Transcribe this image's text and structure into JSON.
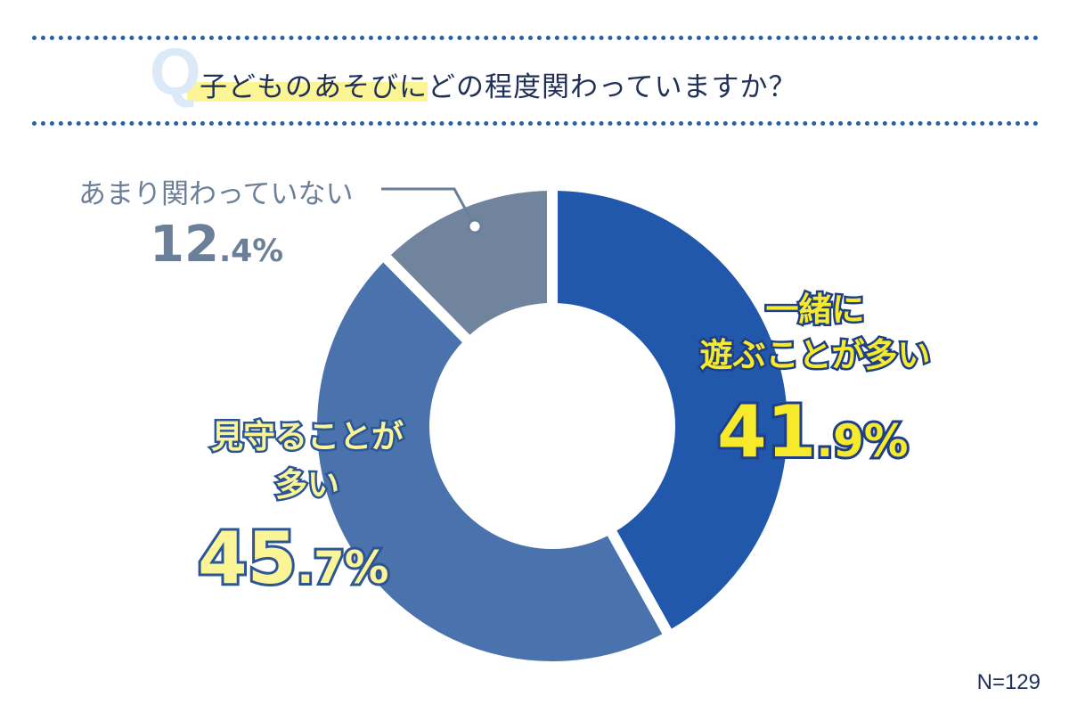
{
  "question": {
    "mark": "Q",
    "text": "子どものあそびにどの程度関わっていますか？"
  },
  "colors": {
    "dots": "#2a5fa8",
    "together": "#2158ab",
    "watch": "#4a73ad",
    "rarely": "#70849d",
    "highlight_yellow": "#f7ea2a"
  },
  "chart_data": {
    "type": "pie",
    "style": "donut",
    "start_angle_deg": 0,
    "direction": "clockwise",
    "series": [
      {
        "label_lines": [
          "一緒に",
          "遊ぶことが多い"
        ],
        "value": 41.9,
        "pct_main": "41",
        "pct_small": ".9",
        "pct_sign": "%",
        "color": "#2158ab"
      },
      {
        "label_lines": [
          "見守ることが",
          "多い"
        ],
        "value": 45.7,
        "pct_main": "45",
        "pct_small": ".7",
        "pct_sign": "%",
        "color": "#4a73ad"
      },
      {
        "label_lines": [
          "あまり関わっていない"
        ],
        "value": 12.4,
        "pct_main": "12",
        "pct_small": ".4",
        "pct_sign": "%",
        "color": "#70849d"
      }
    ],
    "sample_size": "N=129"
  }
}
